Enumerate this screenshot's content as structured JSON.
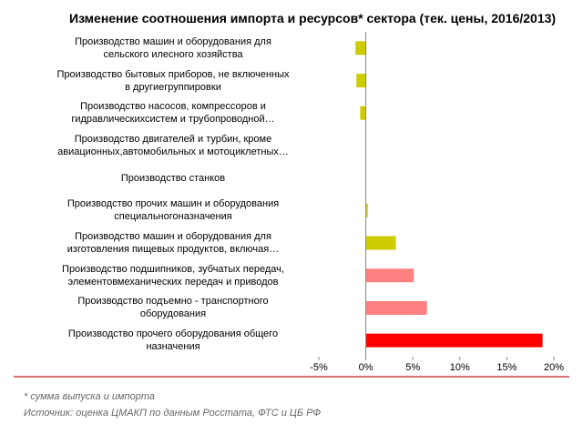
{
  "chart_data": {
    "type": "hbar",
    "title": "Изменение соотношения импорта и ресурсов* сектора (тек. цены, 2016/2013)",
    "categories": [
      "Производство машин и оборудования для\nсельского илесного хозяйства",
      "Производство бытовых приборов, не включенных\nв другиегруппировки",
      "Производство насосов, компрессоров и\nгидравлическихсистем и трубопроводной…",
      "Производство двигателей и турбин, кроме\nавиационных,автомобильных и мотоциклетных…",
      "Производство станков",
      "Производство прочих машин и оборудования\nспециальногоназначения",
      "Производство машин и оборудования для\nизготовления пищевых продуктов, включая…",
      "Производство подшипников, зубчатых передач,\nэлементовмеханических передач и приводов",
      "Производство подъемно - транспортного\nоборудования",
      "Производство прочего оборудования общего\nназначения"
    ],
    "values": [
      -1.1,
      -1.0,
      -0.6,
      0,
      0,
      0.2,
      3.2,
      5.1,
      6.5,
      18.8
    ],
    "colors": [
      "#cccc00",
      "#cccc00",
      "#cccc00",
      "#cccc00",
      "#cccc00",
      "#cccc00",
      "#cccc00",
      "#ff8080",
      "#ff8080",
      "#ff0000"
    ],
    "xlim": [
      -5,
      20
    ],
    "xticks": [
      {
        "value": -5,
        "label": "-5%"
      },
      {
        "value": 0,
        "label": "0%"
      },
      {
        "value": 5,
        "label": "5%"
      },
      {
        "value": 10,
        "label": "10%"
      },
      {
        "value": 15,
        "label": "15%"
      },
      {
        "value": 20,
        "label": "20%"
      }
    ],
    "footnotes": [
      "* сумма выпуска и импорта",
      "Источник: оценка ЦМАКП по данным Росстата, ФТС и ЦБ РФ"
    ]
  }
}
